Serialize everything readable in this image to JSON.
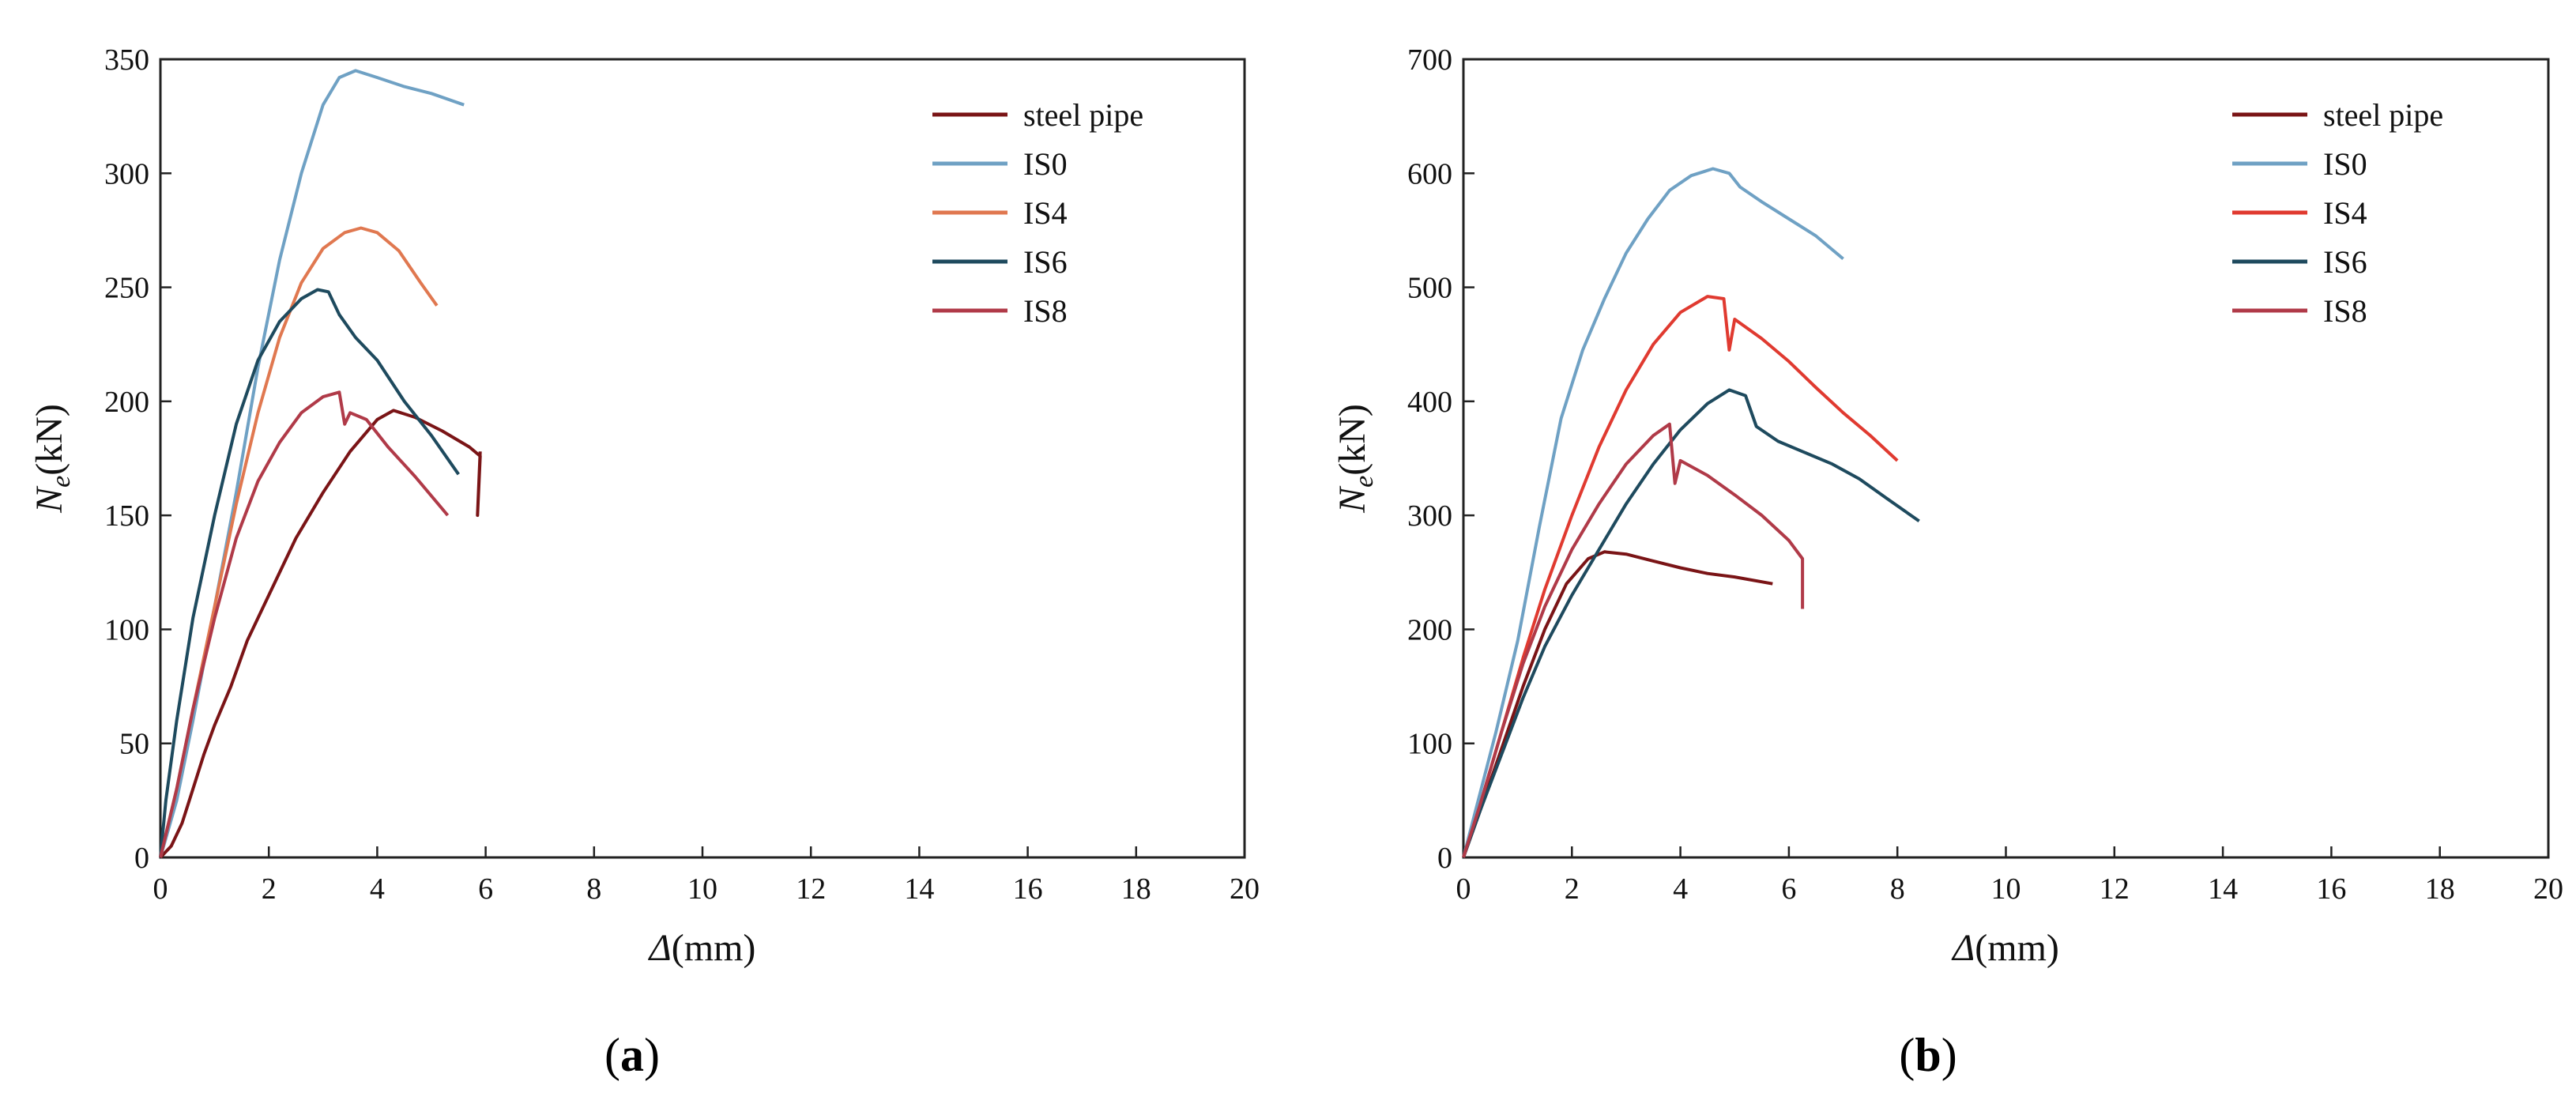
{
  "figure": {
    "panels": [
      {
        "caption_open": "(",
        "caption_letter": "a",
        "caption_close": ")"
      },
      {
        "caption_open": "(",
        "caption_letter": "b",
        "caption_close": ")"
      }
    ]
  },
  "chart_data": [
    {
      "type": "line",
      "panel": "a",
      "xlabel_symbol": "Δ",
      "xlabel_unit": "(mm)",
      "ylabel_symbol": "N",
      "ylabel_sub": "e",
      "ylabel_unit": "(kN)",
      "xlim": [
        0,
        20
      ],
      "ylim": [
        0,
        350
      ],
      "xticks": [
        0,
        2,
        4,
        6,
        8,
        10,
        12,
        14,
        16,
        18,
        20
      ],
      "yticks": [
        0,
        50,
        100,
        150,
        200,
        250,
        300,
        350
      ],
      "legend_position": "top-right",
      "series": [
        {
          "name": "steel pipe",
          "color": "#7a1416",
          "points": [
            [
              0,
              0
            ],
            [
              0.2,
              5
            ],
            [
              0.4,
              15
            ],
            [
              0.6,
              30
            ],
            [
              0.8,
              45
            ],
            [
              1.0,
              58
            ],
            [
              1.3,
              75
            ],
            [
              1.6,
              95
            ],
            [
              2.0,
              115
            ],
            [
              2.5,
              140
            ],
            [
              3.0,
              160
            ],
            [
              3.5,
              178
            ],
            [
              4.0,
              192
            ],
            [
              4.3,
              196
            ],
            [
              4.7,
              193
            ],
            [
              5.2,
              187
            ],
            [
              5.7,
              180
            ],
            [
              5.9,
              176
            ],
            [
              5.85,
              150
            ],
            [
              5.9,
              178
            ]
          ]
        },
        {
          "name": "IS0",
          "color": "#6fa1c4",
          "points": [
            [
              0,
              0
            ],
            [
              0.3,
              25
            ],
            [
              0.6,
              60
            ],
            [
              1.0,
              110
            ],
            [
              1.4,
              160
            ],
            [
              1.8,
              215
            ],
            [
              2.2,
              262
            ],
            [
              2.6,
              300
            ],
            [
              3.0,
              330
            ],
            [
              3.3,
              342
            ],
            [
              3.6,
              345
            ],
            [
              4.0,
              342
            ],
            [
              4.5,
              338
            ],
            [
              5.0,
              335
            ],
            [
              5.6,
              330
            ]
          ]
        },
        {
          "name": "IS4",
          "color": "#e07850",
          "points": [
            [
              0,
              0
            ],
            [
              0.3,
              30
            ],
            [
              0.6,
              65
            ],
            [
              1.0,
              110
            ],
            [
              1.4,
              155
            ],
            [
              1.8,
              195
            ],
            [
              2.2,
              228
            ],
            [
              2.6,
              252
            ],
            [
              3.0,
              267
            ],
            [
              3.4,
              274
            ],
            [
              3.7,
              276
            ],
            [
              4.0,
              274
            ],
            [
              4.4,
              266
            ],
            [
              4.8,
              252
            ],
            [
              5.1,
              242
            ]
          ]
        },
        {
          "name": "IS6",
          "color": "#1e4a5e",
          "points": [
            [
              0,
              0
            ],
            [
              0.1,
              25
            ],
            [
              0.3,
              60
            ],
            [
              0.6,
              105
            ],
            [
              1.0,
              150
            ],
            [
              1.4,
              190
            ],
            [
              1.8,
              218
            ],
            [
              2.2,
              235
            ],
            [
              2.6,
              245
            ],
            [
              2.9,
              249
            ],
            [
              3.1,
              248
            ],
            [
              3.3,
              238
            ],
            [
              3.6,
              228
            ],
            [
              4.0,
              218
            ],
            [
              4.5,
              200
            ],
            [
              5.0,
              185
            ],
            [
              5.5,
              168
            ]
          ]
        },
        {
          "name": "IS8",
          "color": "#b03a48",
          "points": [
            [
              0,
              0
            ],
            [
              0.3,
              30
            ],
            [
              0.6,
              65
            ],
            [
              1.0,
              105
            ],
            [
              1.4,
              140
            ],
            [
              1.8,
              165
            ],
            [
              2.2,
              182
            ],
            [
              2.6,
              195
            ],
            [
              3.0,
              202
            ],
            [
              3.3,
              204
            ],
            [
              3.4,
              190
            ],
            [
              3.5,
              195
            ],
            [
              3.8,
              192
            ],
            [
              4.2,
              180
            ],
            [
              4.7,
              167
            ],
            [
              5.3,
              150
            ]
          ]
        }
      ]
    },
    {
      "type": "line",
      "panel": "b",
      "xlabel_symbol": "Δ",
      "xlabel_unit": "(mm)",
      "ylabel_symbol": "N",
      "ylabel_sub": "e",
      "ylabel_unit": "(kN)",
      "xlim": [
        0,
        20
      ],
      "ylim": [
        0,
        700
      ],
      "xticks": [
        0,
        2,
        4,
        6,
        8,
        10,
        12,
        14,
        16,
        18,
        20
      ],
      "yticks": [
        0,
        100,
        200,
        300,
        400,
        500,
        600,
        700
      ],
      "legend_position": "top-right",
      "series": [
        {
          "name": "steel pipe",
          "color": "#7a1416",
          "points": [
            [
              0,
              0
            ],
            [
              0.3,
              40
            ],
            [
              0.7,
              95
            ],
            [
              1.1,
              150
            ],
            [
              1.5,
              200
            ],
            [
              1.9,
              240
            ],
            [
              2.3,
              262
            ],
            [
              2.6,
              268
            ],
            [
              3.0,
              266
            ],
            [
              3.5,
              260
            ],
            [
              4.0,
              254
            ],
            [
              4.5,
              249
            ],
            [
              5.0,
              246
            ],
            [
              5.7,
              240
            ]
          ]
        },
        {
          "name": "IS0",
          "color": "#6fa1c4",
          "points": [
            [
              0,
              0
            ],
            [
              0.3,
              55
            ],
            [
              0.6,
              110
            ],
            [
              1.0,
              190
            ],
            [
              1.4,
              290
            ],
            [
              1.8,
              385
            ],
            [
              2.2,
              445
            ],
            [
              2.6,
              490
            ],
            [
              3.0,
              530
            ],
            [
              3.4,
              560
            ],
            [
              3.8,
              585
            ],
            [
              4.2,
              598
            ],
            [
              4.6,
              604
            ],
            [
              4.9,
              600
            ],
            [
              5.1,
              588
            ],
            [
              5.5,
              575
            ],
            [
              6.0,
              560
            ],
            [
              6.5,
              545
            ],
            [
              7.0,
              525
            ]
          ]
        },
        {
          "name": "IS4",
          "color": "#e03a30",
          "points": [
            [
              0,
              0
            ],
            [
              0.3,
              45
            ],
            [
              0.7,
              110
            ],
            [
              1.1,
              175
            ],
            [
              1.5,
              235
            ],
            [
              2.0,
              300
            ],
            [
              2.5,
              360
            ],
            [
              3.0,
              410
            ],
            [
              3.5,
              450
            ],
            [
              4.0,
              478
            ],
            [
              4.5,
              492
            ],
            [
              4.8,
              490
            ],
            [
              4.9,
              445
            ],
            [
              5.0,
              472
            ],
            [
              5.5,
              455
            ],
            [
              6.0,
              435
            ],
            [
              6.5,
              412
            ],
            [
              7.0,
              390
            ],
            [
              7.5,
              370
            ],
            [
              8.0,
              348
            ]
          ]
        },
        {
          "name": "IS6",
          "color": "#1e4a5e",
          "points": [
            [
              0,
              0
            ],
            [
              0.3,
              40
            ],
            [
              0.7,
              90
            ],
            [
              1.1,
              140
            ],
            [
              1.5,
              185
            ],
            [
              2.0,
              230
            ],
            [
              2.5,
              270
            ],
            [
              3.0,
              310
            ],
            [
              3.5,
              345
            ],
            [
              4.0,
              375
            ],
            [
              4.5,
              398
            ],
            [
              4.9,
              410
            ],
            [
              5.2,
              405
            ],
            [
              5.4,
              378
            ],
            [
              5.8,
              365
            ],
            [
              6.3,
              355
            ],
            [
              6.8,
              345
            ],
            [
              7.3,
              332
            ],
            [
              7.8,
              315
            ],
            [
              8.4,
              295
            ]
          ]
        },
        {
          "name": "IS8",
          "color": "#b03a48",
          "points": [
            [
              0,
              0
            ],
            [
              0.3,
              45
            ],
            [
              0.7,
              110
            ],
            [
              1.1,
              170
            ],
            [
              1.5,
              220
            ],
            [
              2.0,
              270
            ],
            [
              2.5,
              310
            ],
            [
              3.0,
              345
            ],
            [
              3.5,
              370
            ],
            [
              3.8,
              380
            ],
            [
              3.9,
              328
            ],
            [
              4.0,
              348
            ],
            [
              4.5,
              335
            ],
            [
              5.0,
              318
            ],
            [
              5.5,
              300
            ],
            [
              6.0,
              278
            ],
            [
              6.25,
              262
            ],
            [
              6.25,
              218
            ]
          ]
        }
      ]
    }
  ]
}
